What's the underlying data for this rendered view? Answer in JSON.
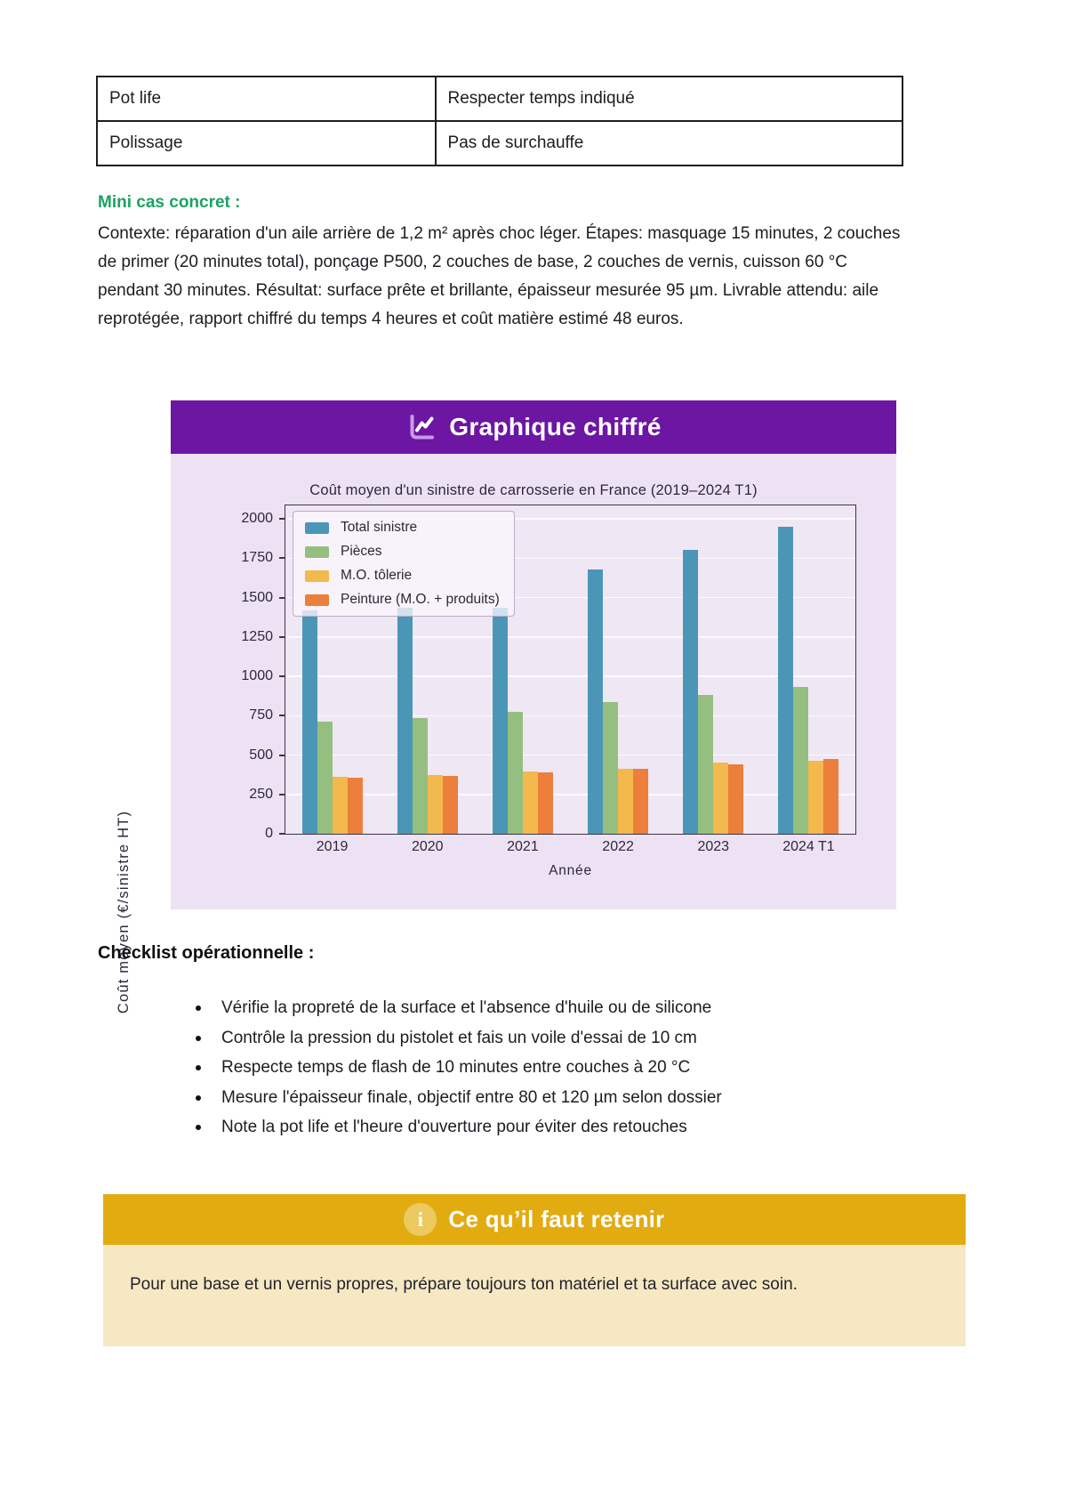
{
  "table": {
    "rows": [
      {
        "col1": "Pot life",
        "col2": "Respecter temps indiqué"
      },
      {
        "col1": "Polissage",
        "col2": "Pas de surchauffe"
      }
    ]
  },
  "mini_case": {
    "heading": "Mini cas concret :",
    "body": "Contexte: réparation d'un aile arrière de 1,2 m² après choc léger. Étapes: masquage 15 minutes, 2 couches de primer (20 minutes total), ponçage P500, 2 couches de base, 2 couches de vernis, cuisson 60 °C pendant 30 minutes. Résultat: surface prête et brillante, épaisseur mesurée 95 µm. Livrable attendu: aile reprotégée, rapport chiffré du temps 4 heures et coût matière estimé 48 euros."
  },
  "chart_section": {
    "header_title": "Graphique chiffré",
    "header_bg": "#6c16a3",
    "card_bg": "#ede2f3",
    "icon": "line-chart-icon"
  },
  "chart_data": {
    "type": "bar",
    "title": "Coût moyen d'un sinistre de carrosserie en France (2019–2024 T1)",
    "xlabel": "Année",
    "ylabel": "Coût moyen (€/sinistre HT)",
    "categories": [
      "2019",
      "2020",
      "2021",
      "2022",
      "2023",
      "2024 T1"
    ],
    "series": [
      {
        "name": "Total sinistre",
        "color": "#4b96b6",
        "values": [
          1420,
          1435,
          1435,
          1680,
          1800,
          1950
        ]
      },
      {
        "name": "Pièces",
        "color": "#95bf80",
        "values": [
          710,
          735,
          775,
          835,
          880,
          935
        ]
      },
      {
        "name": "M.O. tôlerie",
        "color": "#f3b94c",
        "values": [
          360,
          375,
          395,
          415,
          450,
          465
        ]
      },
      {
        "name": "Peinture (M.O. + produits)",
        "color": "#ec7f3b",
        "values": [
          355,
          370,
          390,
          410,
          440,
          475
        ]
      }
    ],
    "ylim": [
      0,
      2000
    ],
    "yticks": [
      0,
      250,
      500,
      750,
      1000,
      1250,
      1500,
      1750,
      2000
    ],
    "grid": true,
    "legend_position": "upper-left"
  },
  "checklist": {
    "heading": "Checklist opérationnelle :",
    "items": [
      "Vérifie la propreté de la surface et l'absence d'huile ou de silicone",
      "Contrôle la pression du pistolet et fais un voile d'essai de 10 cm",
      "Respecte temps de flash de 10 minutes entre couches à 20 °C",
      "Mesure l'épaisseur finale, objectif entre 80 et 120 µm selon dossier",
      "Note la pot life et l'heure d'ouverture pour éviter des retouches"
    ]
  },
  "callout": {
    "title": "Ce qu’il faut retenir",
    "icon": "info-icon",
    "header_bg": "#e2ab10",
    "body_bg": "#f6e8c3",
    "body": "Pour une base et un vernis propres, prépare toujours ton matériel et ta surface avec soin."
  }
}
